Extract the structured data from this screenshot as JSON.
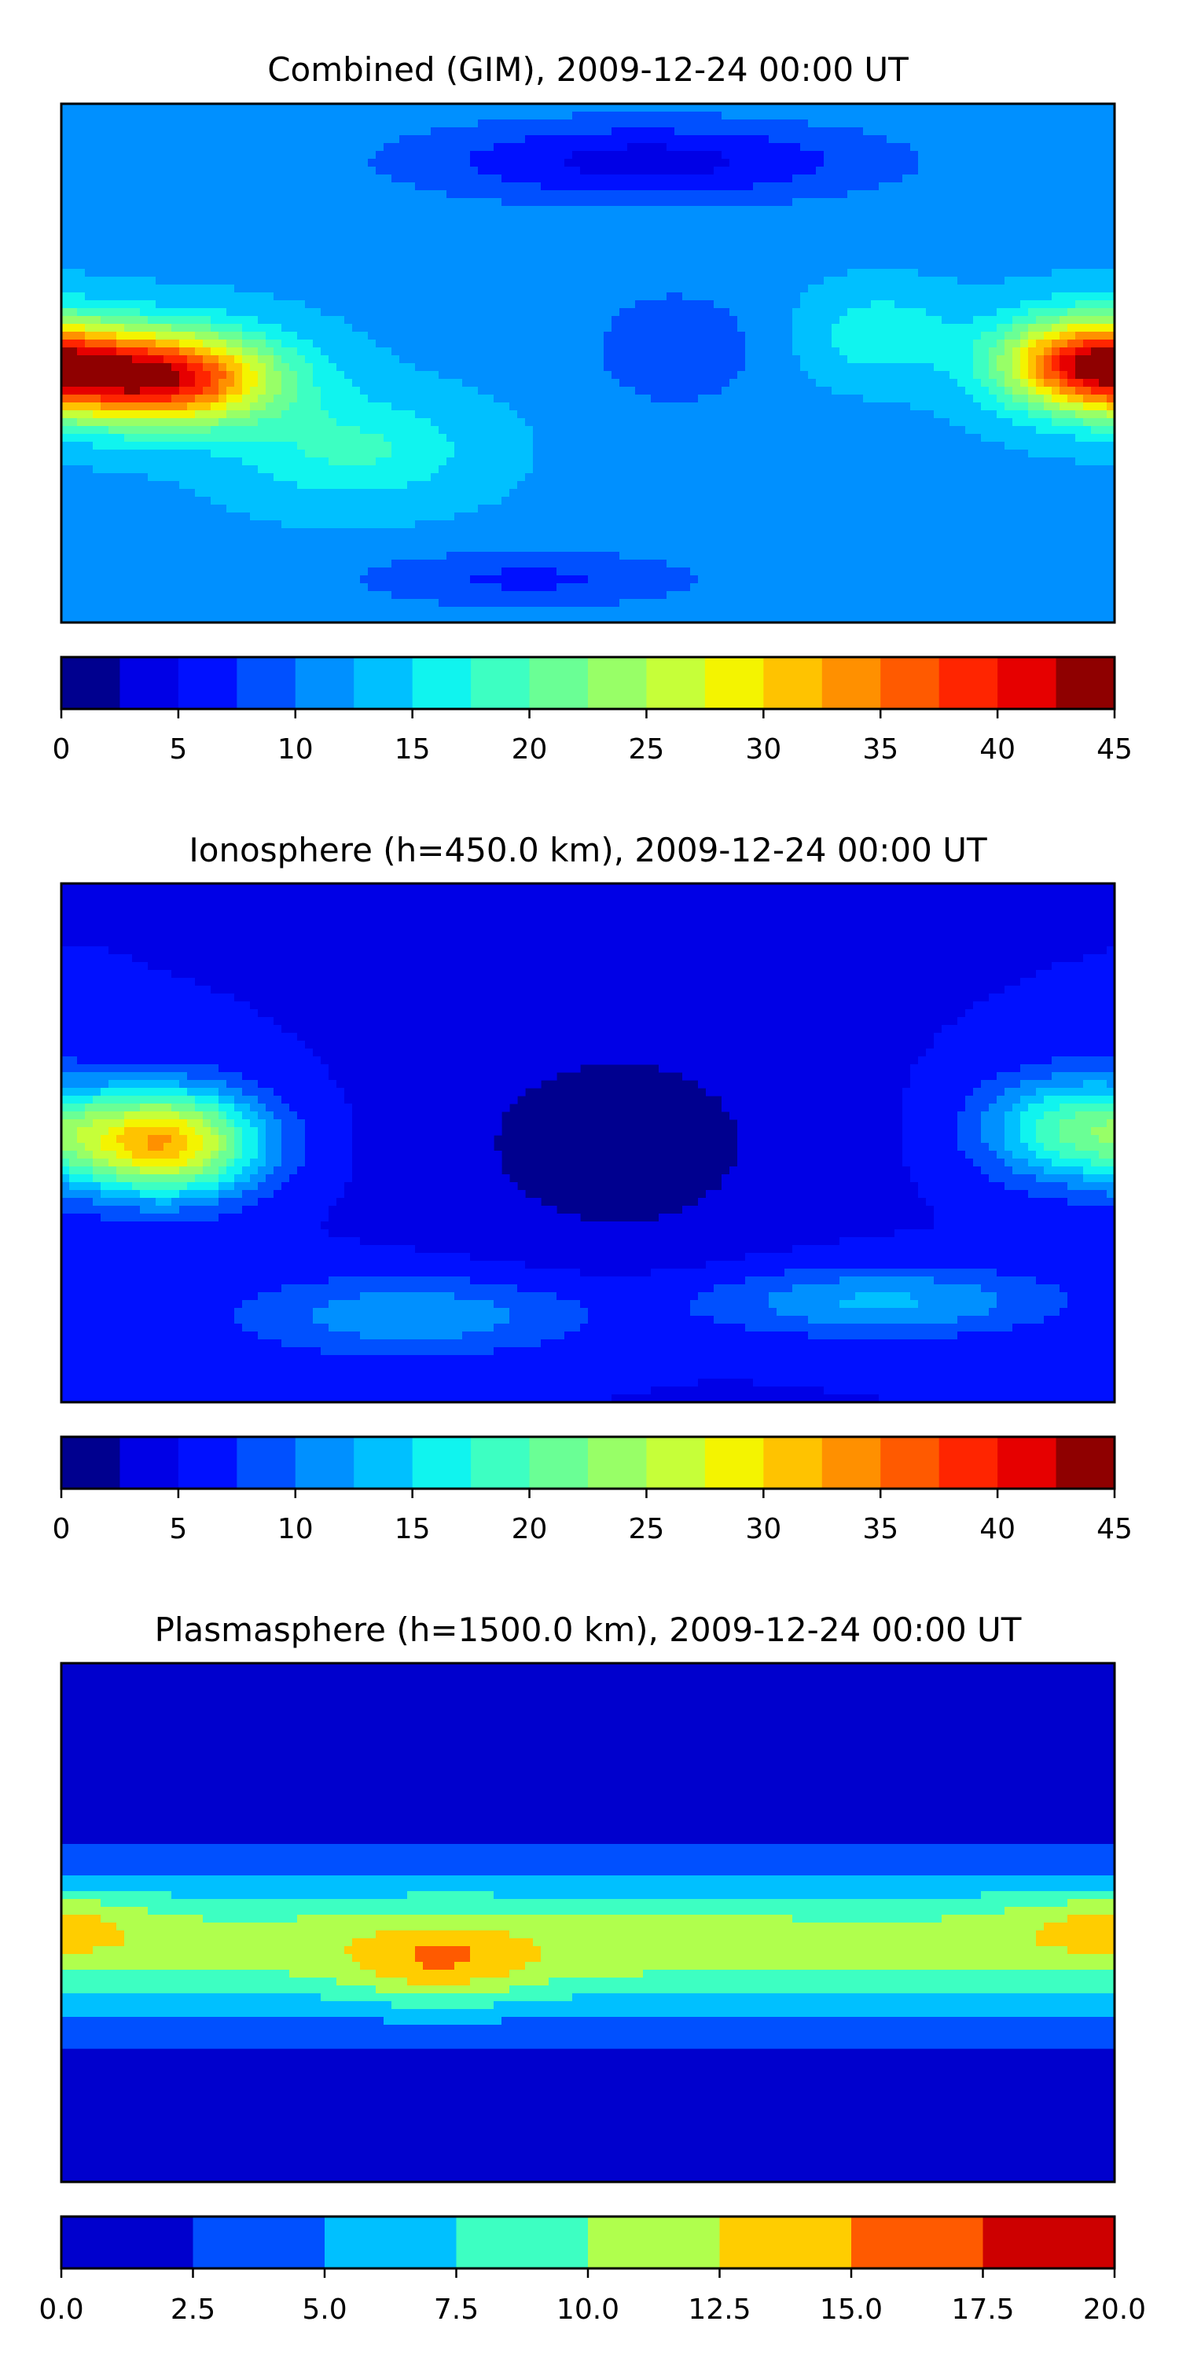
{
  "chart_data": [
    {
      "type": "heatmap",
      "title": "Combined (GIM), 2009-12-24 00:00 UT",
      "colorbar": {
        "levels": [
          0,
          2.5,
          5,
          7.5,
          10,
          12.5,
          15,
          17.5,
          20,
          22.5,
          25,
          27.5,
          30,
          32.5,
          35,
          37.5,
          40,
          42.5,
          45
        ],
        "ticks": [
          "0",
          "5",
          "10",
          "15",
          "20",
          "25",
          "30",
          "35",
          "40",
          "45"
        ],
        "colors": [
          "#00008f",
          "#0000e6",
          "#0010ff",
          "#0050ff",
          "#0090ff",
          "#00c0ff",
          "#10f4ef",
          "#3dffc2",
          "#6aff95",
          "#98ff67",
          "#c6ff39",
          "#f4f400",
          "#ffc300",
          "#ff9000",
          "#ff5a00",
          "#ff2500",
          "#e60000",
          "#8f0000"
        ]
      },
      "field": {
        "base": 12,
        "blobs": [
          {
            "lon": -145,
            "lat": -5,
            "amp": 30,
            "slon": 38,
            "slat": 16
          },
          {
            "lon": 170,
            "lat": 0,
            "amp": 26,
            "slon": 30,
            "slat": 16
          },
          {
            "lon": -80,
            "lat": -30,
            "amp": 6,
            "slon": 40,
            "slat": 18
          },
          {
            "lon": 20,
            "lat": 70,
            "amp": -8,
            "slon": 80,
            "slat": 14
          },
          {
            "lon": 30,
            "lat": 5,
            "amp": -4,
            "slon": 30,
            "slat": 22
          },
          {
            "lon": -20,
            "lat": -75,
            "amp": -5,
            "slon": 60,
            "slat": 10
          },
          {
            "lon": 100,
            "lat": 10,
            "amp": 5,
            "slon": 25,
            "slat": 15
          }
        ]
      }
    },
    {
      "type": "heatmap",
      "title": "Ionosphere  (h=450.0 km), 2009-12-24 00:00 UT",
      "colorbar": {
        "levels": [
          0,
          2.5,
          5,
          7.5,
          10,
          12.5,
          15,
          17.5,
          20,
          22.5,
          25,
          27.5,
          30,
          32.5,
          35,
          37.5,
          40,
          42.5,
          45
        ],
        "ticks": [
          "0",
          "5",
          "10",
          "15",
          "20",
          "25",
          "30",
          "35",
          "40",
          "45"
        ],
        "colors": [
          "#00008f",
          "#0000e6",
          "#0010ff",
          "#0050ff",
          "#0090ff",
          "#00c0ff",
          "#10f4ef",
          "#3dffc2",
          "#6aff95",
          "#98ff67",
          "#c6ff39",
          "#f4f400",
          "#ffc300",
          "#ff9000",
          "#ff5a00",
          "#ff2500",
          "#e60000",
          "#8f0000"
        ]
      },
      "field": {
        "base": 5,
        "blobs": [
          {
            "lon": -145,
            "lat": 0,
            "amp": 27,
            "slon": 32,
            "slat": 18
          },
          {
            "lon": 165,
            "lat": 5,
            "amp": 14,
            "slon": 30,
            "slat": 18
          },
          {
            "lon": -60,
            "lat": -60,
            "amp": 7,
            "slon": 60,
            "slat": 14
          },
          {
            "lon": 100,
            "lat": -55,
            "amp": 8,
            "slon": 60,
            "slat": 12
          },
          {
            "lon": 10,
            "lat": 0,
            "amp": -4,
            "slon": 60,
            "slat": 40
          }
        ]
      }
    },
    {
      "type": "heatmap",
      "title": "Plasmasphere (h=1500.0 km), 2009-12-24 00:00 UT",
      "colorbar": {
        "levels": [
          0,
          2.5,
          5,
          7.5,
          10,
          12.5,
          15,
          17.5,
          20
        ],
        "ticks": [
          "0.0",
          "2.5",
          "5.0",
          "7.5",
          "10.0",
          "12.5",
          "15.0",
          "17.5",
          "20.0"
        ],
        "colors": [
          "#0000cd",
          "#0050ff",
          "#00c0ff",
          "#3dffc2",
          "#b0ff4d",
          "#ffcd00",
          "#ff5a00",
          "#cd0000"
        ]
      },
      "field": {
        "base": 1.5,
        "blobs": [
          {
            "lon": 0,
            "lat": -8,
            "amp": 10,
            "slon": 700,
            "slat": 24
          },
          {
            "lon": -50,
            "lat": -15,
            "amp": 4.5,
            "slon": 30,
            "slat": 14
          },
          {
            "lon": 170,
            "lat": 0,
            "amp": 2.5,
            "slon": 30,
            "slat": 12
          },
          {
            "lon": -170,
            "lat": 0,
            "amp": 1.5,
            "slon": 25,
            "slat": 12
          }
        ]
      }
    }
  ]
}
